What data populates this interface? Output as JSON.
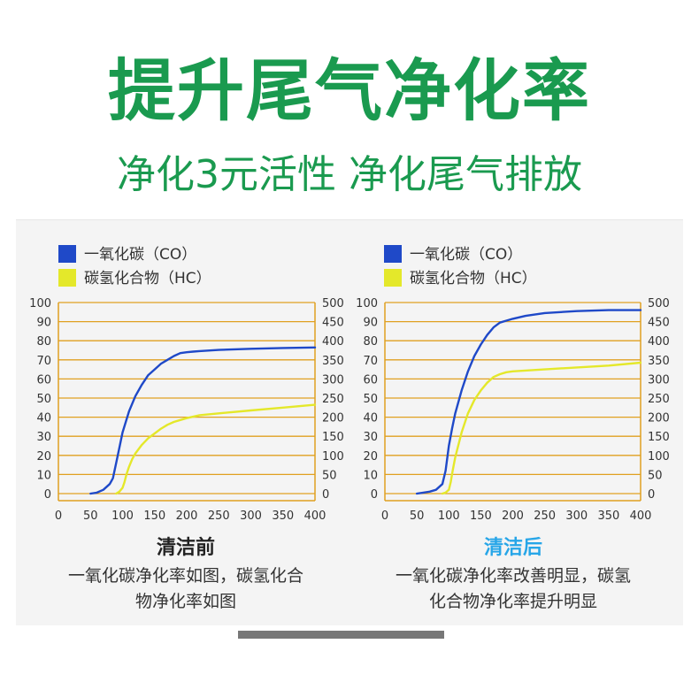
{
  "header": {
    "title": "提升尾气净化率",
    "subtitle": "净化3元活性 净化尾气排放"
  },
  "colors": {
    "brand_green": "#1a9a4f",
    "co_blue": "#1f49c8",
    "hc_yellow": "#e4e82a",
    "grid_orange": "#e0a020",
    "after_title_blue": "#27a6e8"
  },
  "panels": [
    {
      "title": "清洁前",
      "desc_lines": [
        "一氧化碳净化率如图，碳氢化合",
        "物净化率如图"
      ]
    },
    {
      "title": "清洁后",
      "desc_lines": [
        "一氧化碳净化率改善明显，碳氢",
        "化合物净化率提升明显"
      ]
    }
  ],
  "chart_data": [
    {
      "type": "line",
      "title": "",
      "legend_position": "top-left",
      "grid": true,
      "x_ticks": [
        0,
        50,
        100,
        150,
        200,
        250,
        300,
        350,
        400
      ],
      "xlim": [
        0,
        400
      ],
      "y_left_ticks": [
        0,
        10,
        20,
        30,
        40,
        50,
        60,
        70,
        80,
        90,
        100
      ],
      "ylim_left": [
        0,
        100
      ],
      "y_right_ticks": [
        0,
        50,
        100,
        150,
        200,
        250,
        300,
        350,
        400,
        450,
        500
      ],
      "ylim_right": [
        0,
        500
      ],
      "series": [
        {
          "name": "一氧化碳（CO）",
          "axis": "left",
          "x": [
            50,
            60,
            70,
            80,
            85,
            90,
            95,
            100,
            110,
            120,
            130,
            140,
            150,
            160,
            170,
            180,
            190,
            200,
            210,
            220,
            250,
            300,
            350,
            400
          ],
          "y": [
            0,
            0.5,
            2,
            5,
            8,
            16,
            24,
            32,
            43,
            51,
            57,
            62,
            65,
            68,
            70,
            72,
            73.5,
            74,
            74.3,
            74.6,
            75.2,
            75.8,
            76.2,
            76.5
          ]
        },
        {
          "name": "碳氢化合物（HC）",
          "axis": "left",
          "x": [
            90,
            95,
            100,
            103,
            106,
            110,
            115,
            120,
            130,
            140,
            150,
            160,
            170,
            180,
            190,
            200,
            220,
            250,
            300,
            350,
            400
          ],
          "y": [
            0,
            1,
            3,
            6,
            10,
            14,
            18,
            21,
            25.5,
            29,
            31.5,
            34,
            36,
            37.5,
            38.5,
            39.5,
            41,
            42,
            43.5,
            45,
            46.5
          ]
        }
      ]
    },
    {
      "type": "line",
      "title": "",
      "legend_position": "top-left",
      "grid": true,
      "x_ticks": [
        0,
        50,
        100,
        150,
        200,
        250,
        300,
        350,
        400
      ],
      "xlim": [
        0,
        400
      ],
      "y_left_ticks": [
        0,
        10,
        20,
        30,
        40,
        50,
        60,
        70,
        80,
        90,
        100
      ],
      "ylim_left": [
        0,
        100
      ],
      "y_right_ticks": [
        0,
        50,
        100,
        150,
        200,
        250,
        300,
        350,
        400,
        450,
        500
      ],
      "ylim_right": [
        0,
        500
      ],
      "series": [
        {
          "name": "一氧化碳（CO）",
          "axis": "left",
          "x": [
            50,
            60,
            70,
            80,
            90,
            95,
            100,
            105,
            110,
            120,
            130,
            140,
            150,
            160,
            170,
            180,
            190,
            200,
            220,
            250,
            300,
            350,
            400
          ],
          "y": [
            0,
            0.5,
            1,
            2,
            5,
            12,
            25,
            34,
            42,
            54,
            64,
            72,
            78,
            83,
            87,
            89.5,
            90.5,
            91.5,
            93,
            94.5,
            95.5,
            96,
            96
          ]
        },
        {
          "name": "碳氢化合物（HC）",
          "axis": "left",
          "x": [
            90,
            95,
            100,
            103,
            106,
            110,
            120,
            130,
            140,
            150,
            160,
            170,
            180,
            190,
            200,
            250,
            300,
            350,
            400
          ],
          "y": [
            0,
            0.5,
            2,
            6,
            12,
            19,
            32,
            42,
            49,
            54,
            58,
            61,
            62.5,
            63.5,
            64,
            65,
            66,
            67,
            68.5
          ]
        }
      ]
    }
  ]
}
